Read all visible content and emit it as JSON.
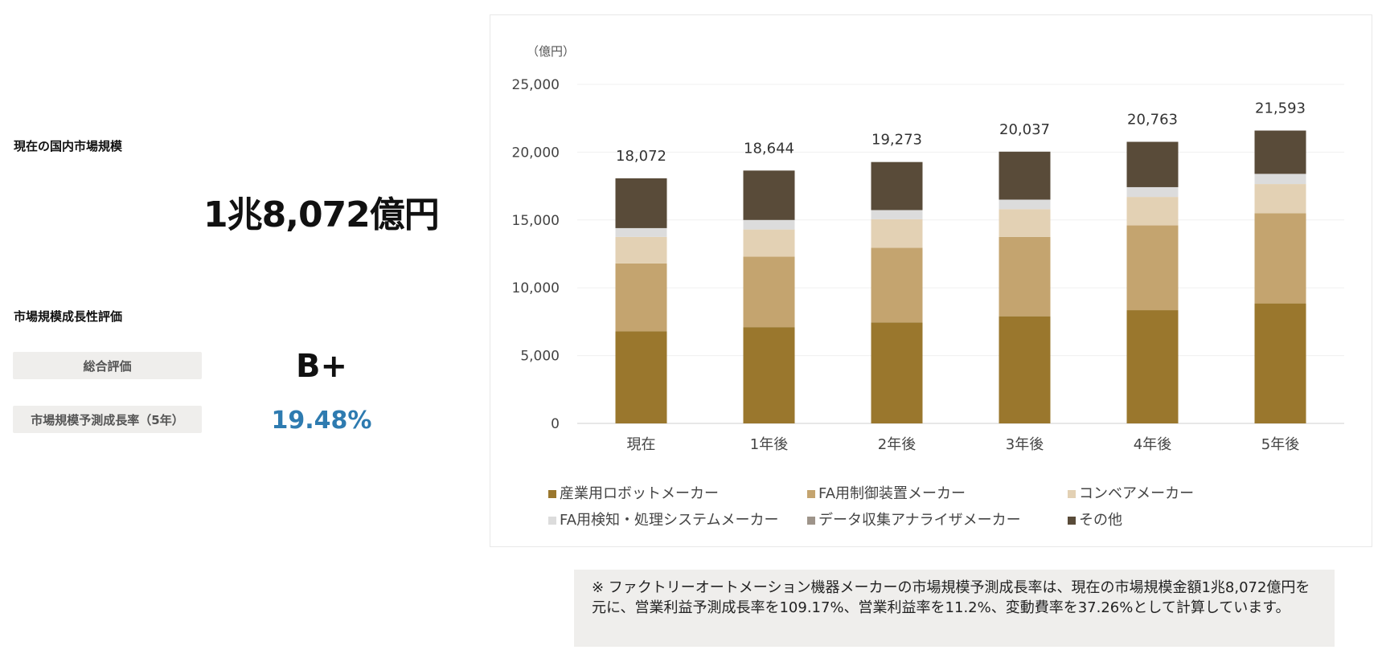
{
  "summary": {
    "market_size_label": "現在の国内市場規模",
    "market_size_value": "1兆8,072億円",
    "growth_eval_label": "市場規模成長性評価",
    "overall_label": "総合評価",
    "overall_grade": "B+",
    "forecast_label": "市場規模予測成長率（5年）",
    "forecast_rate": "19.48%"
  },
  "note": {
    "text": "※ ファクトリーオートメーション機器メーカーの市場規模予測成長率は、現在の市場規模金額1兆8,072億円を元に、営業利益予測成長率を109.17%、営業利益率を11.2%、変動費率を37.26%として計算しています。"
  },
  "chart_data": {
    "type": "bar",
    "stacked": true,
    "unit_label": "（億円）",
    "categories": [
      "現在",
      "1年後",
      "2年後",
      "3年後",
      "4年後",
      "5年後"
    ],
    "series": [
      {
        "name": "産業用ロボットメーカー",
        "color": "#9a772d",
        "values": [
          6800,
          7100,
          7450,
          7900,
          8350,
          8850
        ]
      },
      {
        "name": "FA用制御装置メーカー",
        "color": "#c4a46f",
        "values": [
          5000,
          5200,
          5500,
          5850,
          6250,
          6650
        ]
      },
      {
        "name": "コンベアメーカー",
        "color": "#e3d1b4",
        "values": [
          1950,
          2000,
          2100,
          2050,
          2100,
          2150
        ]
      },
      {
        "name": "FA用検知・処理システムメーカー",
        "color": "#dcdcdc",
        "values": [
          650,
          700,
          680,
          700,
          720,
          750
        ]
      },
      {
        "name": "データ収集アナライザメーカー",
        "color": "#9e948a",
        "values": [
          0,
          0,
          0,
          0,
          0,
          0
        ]
      },
      {
        "name": "その他",
        "color": "#594b39",
        "values": [
          3672,
          3644,
          3543,
          3537,
          3343,
          3193
        ]
      }
    ],
    "totals": [
      18072,
      18644,
      19273,
      20037,
      20763,
      21593
    ],
    "total_labels": [
      "18,072",
      "18,644",
      "19,273",
      "20,037",
      "20,763",
      "21,593"
    ],
    "ylim": [
      0,
      25000
    ],
    "yticks": [
      0,
      5000,
      10000,
      15000,
      20000,
      25000
    ],
    "ytick_labels": [
      "0",
      "5,000",
      "10,000",
      "15,000",
      "20,000",
      "25,000"
    ],
    "grid": true,
    "legend_position": "bottom"
  }
}
